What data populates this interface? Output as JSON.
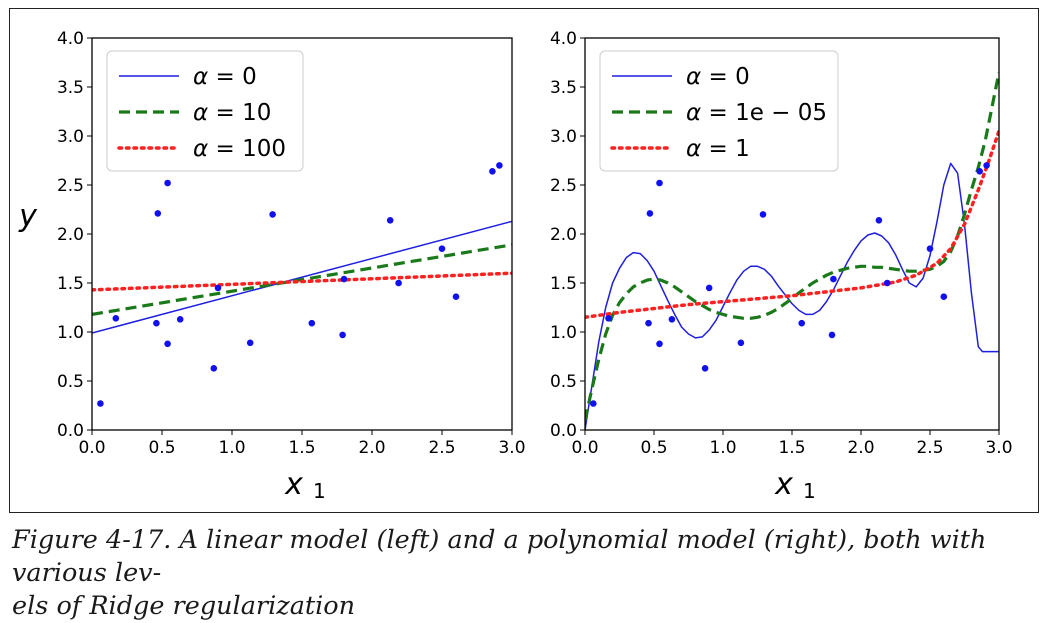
{
  "caption": {
    "line1": "Figure 4-17. A linear model (left) and a polynomial model (right), both with various lev-",
    "line2": "els of Ridge regularization"
  },
  "colors": {
    "blue": "#1f1fe0",
    "green": "#1a7a1a",
    "red": "#ff2020",
    "points": "#1010f0"
  },
  "chart_data": [
    {
      "type": "line",
      "panel": "left",
      "title": "",
      "xlabel": "x",
      "xlabel_sub": "1",
      "ylabel": "y",
      "xlim": [
        0,
        3
      ],
      "ylim": [
        0,
        4
      ],
      "xticks": [
        "0.0",
        "0.5",
        "1.0",
        "1.5",
        "2.0",
        "2.5",
        "3.0"
      ],
      "yticks": [
        "0.0",
        "0.5",
        "1.0",
        "1.5",
        "2.0",
        "2.5",
        "3.0",
        "3.5",
        "4.0"
      ],
      "legend_position": "top-left",
      "scatter": [
        [
          0.06,
          0.27
        ],
        [
          0.17,
          1.14
        ],
        [
          0.46,
          1.09
        ],
        [
          0.47,
          2.21
        ],
        [
          0.54,
          2.52
        ],
        [
          0.54,
          0.88
        ],
        [
          0.63,
          1.13
        ],
        [
          0.87,
          0.63
        ],
        [
          0.9,
          1.45
        ],
        [
          1.13,
          0.89
        ],
        [
          1.29,
          2.2
        ],
        [
          1.57,
          1.09
        ],
        [
          1.79,
          0.97
        ],
        [
          1.8,
          1.54
        ],
        [
          2.13,
          2.14
        ],
        [
          2.19,
          1.5
        ],
        [
          2.5,
          1.85
        ],
        [
          2.6,
          1.36
        ],
        [
          2.86,
          2.64
        ],
        [
          2.91,
          2.7
        ]
      ],
      "series": [
        {
          "name": "α = 0",
          "legend_alpha": "α",
          "legend_value": "0",
          "style": "solid",
          "color_key": "blue",
          "x": [
            0,
            3
          ],
          "y": [
            0.99,
            2.13
          ]
        },
        {
          "name": "α = 10",
          "legend_alpha": "α",
          "legend_value": "10",
          "style": "dashed",
          "color_key": "green",
          "x": [
            0,
            3
          ],
          "y": [
            1.18,
            1.89
          ]
        },
        {
          "name": "α = 100",
          "legend_alpha": "α",
          "legend_value": "100",
          "style": "dotted",
          "color_key": "red",
          "x": [
            0,
            3
          ],
          "y": [
            1.43,
            1.6
          ]
        }
      ]
    },
    {
      "type": "line",
      "panel": "right",
      "title": "",
      "xlabel": "x",
      "xlabel_sub": "1",
      "ylabel": "",
      "xlim": [
        0,
        3
      ],
      "ylim": [
        0,
        4
      ],
      "xticks": [
        "0.0",
        "0.5",
        "1.0",
        "1.5",
        "2.0",
        "2.5",
        "3.0"
      ],
      "yticks": [
        "0.0",
        "0.5",
        "1.0",
        "1.5",
        "2.0",
        "2.5",
        "3.0",
        "3.5",
        "4.0"
      ],
      "legend_position": "top-left",
      "scatter": [
        [
          0.06,
          0.27
        ],
        [
          0.17,
          1.14
        ],
        [
          0.46,
          1.09
        ],
        [
          0.47,
          2.21
        ],
        [
          0.54,
          2.52
        ],
        [
          0.54,
          0.88
        ],
        [
          0.63,
          1.13
        ],
        [
          0.87,
          0.63
        ],
        [
          0.9,
          1.45
        ],
        [
          1.13,
          0.89
        ],
        [
          1.29,
          2.2
        ],
        [
          1.57,
          1.09
        ],
        [
          1.79,
          0.97
        ],
        [
          1.8,
          1.54
        ],
        [
          2.13,
          2.14
        ],
        [
          2.19,
          1.5
        ],
        [
          2.5,
          1.85
        ],
        [
          2.6,
          1.36
        ],
        [
          2.86,
          2.64
        ],
        [
          2.91,
          2.7
        ]
      ],
      "series": [
        {
          "name": "α = 0",
          "legend_alpha": "α",
          "legend_value": "0",
          "style": "solid",
          "color_key": "blue",
          "x": [
            0.0,
            0.05,
            0.1,
            0.15,
            0.2,
            0.25,
            0.3,
            0.35,
            0.4,
            0.45,
            0.5,
            0.55,
            0.6,
            0.65,
            0.7,
            0.75,
            0.8,
            0.85,
            0.9,
            0.95,
            1.0,
            1.05,
            1.1,
            1.15,
            1.2,
            1.25,
            1.3,
            1.35,
            1.4,
            1.45,
            1.5,
            1.55,
            1.6,
            1.65,
            1.7,
            1.75,
            1.8,
            1.85,
            1.9,
            1.95,
            2.0,
            2.05,
            2.1,
            2.15,
            2.2,
            2.25,
            2.3,
            2.35,
            2.4,
            2.45,
            2.5,
            2.55,
            2.6,
            2.65,
            2.7,
            2.75,
            2.8,
            2.85,
            2.88,
            2.91,
            2.94,
            2.97,
            3.0
          ],
          "y": [
            0.0,
            0.45,
            0.9,
            1.25,
            1.5,
            1.65,
            1.76,
            1.81,
            1.8,
            1.73,
            1.62,
            1.47,
            1.32,
            1.18,
            1.05,
            0.98,
            0.94,
            0.95,
            1.02,
            1.12,
            1.26,
            1.4,
            1.53,
            1.62,
            1.67,
            1.67,
            1.64,
            1.57,
            1.47,
            1.38,
            1.29,
            1.22,
            1.18,
            1.18,
            1.22,
            1.31,
            1.43,
            1.57,
            1.71,
            1.83,
            1.93,
            1.99,
            2.01,
            1.98,
            1.91,
            1.79,
            1.64,
            1.5,
            1.46,
            1.55,
            1.78,
            2.12,
            2.5,
            2.72,
            2.62,
            2.1,
            1.4,
            0.85,
            0.8,
            0.8,
            0.8,
            0.8,
            0.8
          ]
        },
        {
          "name": "α = 1e − 05",
          "legend_alpha": "α",
          "legend_value": "1e − 05",
          "style": "dashed",
          "color_key": "green",
          "x": [
            0.0,
            0.05,
            0.1,
            0.15,
            0.2,
            0.25,
            0.3,
            0.35,
            0.4,
            0.45,
            0.5,
            0.55,
            0.6,
            0.65,
            0.7,
            0.75,
            0.8,
            0.85,
            0.9,
            0.95,
            1.0,
            1.05,
            1.1,
            1.15,
            1.2,
            1.25,
            1.3,
            1.35,
            1.4,
            1.45,
            1.5,
            1.55,
            1.6,
            1.65,
            1.7,
            1.75,
            1.8,
            1.85,
            1.9,
            1.95,
            2.0,
            2.05,
            2.1,
            2.15,
            2.2,
            2.25,
            2.3,
            2.35,
            2.4,
            2.45,
            2.5,
            2.55,
            2.6,
            2.65,
            2.7,
            2.75,
            2.8,
            2.85,
            2.9,
            2.95,
            3.0
          ],
          "y": [
            0.1,
            0.42,
            0.72,
            0.98,
            1.17,
            1.3,
            1.39,
            1.46,
            1.5,
            1.53,
            1.54,
            1.53,
            1.5,
            1.46,
            1.41,
            1.36,
            1.31,
            1.27,
            1.23,
            1.2,
            1.18,
            1.16,
            1.15,
            1.14,
            1.14,
            1.15,
            1.17,
            1.2,
            1.24,
            1.29,
            1.34,
            1.4,
            1.45,
            1.5,
            1.54,
            1.58,
            1.61,
            1.63,
            1.65,
            1.66,
            1.67,
            1.67,
            1.66,
            1.66,
            1.65,
            1.64,
            1.63,
            1.62,
            1.62,
            1.63,
            1.64,
            1.67,
            1.72,
            1.82,
            1.98,
            2.2,
            2.45,
            2.68,
            2.95,
            3.3,
            3.65
          ]
        },
        {
          "name": "α = 1",
          "legend_alpha": "α",
          "legend_value": "1",
          "style": "dotted",
          "color_key": "red",
          "x": [
            0.0,
            0.25,
            0.5,
            0.75,
            1.0,
            1.25,
            1.5,
            1.75,
            2.0,
            2.25,
            2.4,
            2.55,
            2.65,
            2.75,
            2.85,
            2.92,
            3.0
          ],
          "y": [
            1.15,
            1.2,
            1.24,
            1.28,
            1.31,
            1.34,
            1.37,
            1.41,
            1.45,
            1.51,
            1.58,
            1.7,
            1.85,
            2.1,
            2.45,
            2.72,
            3.05
          ]
        }
      ]
    }
  ]
}
